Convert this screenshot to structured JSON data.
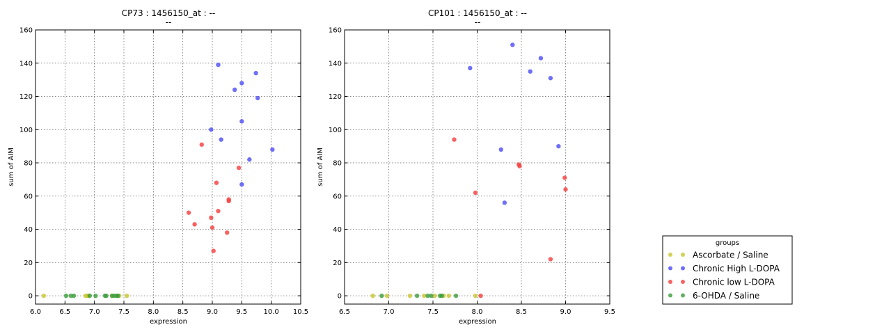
{
  "chart_data": [
    {
      "type": "scatter",
      "title": "CP73 : 1456150_at : --",
      "subtitle": "--",
      "xlabel": "expression",
      "ylabel": "sum of AIM",
      "xlim": [
        6.0,
        10.5
      ],
      "ylim": [
        -5,
        160
      ],
      "xticks": [
        6.0,
        6.5,
        7.0,
        7.5,
        8.0,
        8.5,
        9.0,
        9.5,
        10.0,
        10.5
      ],
      "yticks": [
        0,
        20,
        40,
        60,
        80,
        100,
        120,
        140,
        160
      ],
      "grid": true,
      "series": [
        {
          "name": "Ascorbate / Saline",
          "color": "#c9c631",
          "x": [
            6.14,
            6.85,
            6.88,
            6.9,
            7.3,
            7.42,
            7.55
          ],
          "y": [
            0,
            0,
            0,
            0,
            0,
            0,
            0
          ]
        },
        {
          "name": "Chronic High L-DOPA",
          "color": "#4b4bf5",
          "x": [
            9.1,
            9.38,
            9.5,
            9.74,
            9.77,
            8.98,
            9.5,
            9.15,
            10.02,
            9.63,
            9.5
          ],
          "y": [
            139,
            124,
            128,
            134,
            119,
            100,
            105,
            94,
            88,
            82,
            67
          ]
        },
        {
          "name": "Chronic low L-DOPA",
          "color": "#f53c3c",
          "x": [
            8.82,
            9.45,
            9.07,
            9.28,
            9.28,
            8.6,
            9.1,
            8.98,
            8.7,
            9.0,
            9.25,
            9.02
          ],
          "y": [
            91,
            77,
            68,
            58,
            57,
            50,
            51,
            47,
            43,
            41,
            38,
            27
          ]
        },
        {
          "name": "6-OHDA / Saline",
          "color": "#3c9c3c",
          "x": [
            6.52,
            6.6,
            6.65,
            6.92,
            7.02,
            7.18,
            7.2,
            7.3,
            7.34,
            7.38,
            7.4
          ],
          "y": [
            0,
            0,
            0,
            0,
            0,
            0,
            0,
            0,
            0,
            0,
            0
          ]
        }
      ]
    },
    {
      "type": "scatter",
      "title": "CP101 : 1456150_at : --",
      "subtitle": "--",
      "xlabel": "expression",
      "ylabel": "sum of AIM",
      "xlim": [
        6.5,
        9.5
      ],
      "ylim": [
        -5,
        160
      ],
      "xticks": [
        6.5,
        7.0,
        7.5,
        8.0,
        8.5,
        9.0,
        9.5
      ],
      "yticks": [
        0,
        20,
        40,
        60,
        80,
        100,
        120,
        140,
        160
      ],
      "grid": true,
      "series": [
        {
          "name": "Ascorbate / Saline",
          "color": "#c9c631",
          "x": [
            6.82,
            6.98,
            7.24,
            7.4,
            7.52,
            7.62,
            7.68,
            7.98
          ],
          "y": [
            0,
            0,
            0,
            0,
            0,
            0,
            0,
            0
          ]
        },
        {
          "name": "Chronic High L-DOPA",
          "color": "#4b4bf5",
          "x": [
            8.4,
            8.72,
            7.92,
            8.6,
            8.83,
            8.27,
            8.92,
            8.31
          ],
          "y": [
            151,
            143,
            137,
            135,
            131,
            88,
            90,
            56
          ]
        },
        {
          "name": "Chronic low L-DOPA",
          "color": "#f53c3c",
          "x": [
            7.74,
            8.47,
            8.48,
            8.99,
            9.0,
            7.98,
            8.83,
            8.04
          ],
          "y": [
            94,
            79,
            78,
            71,
            64,
            62,
            22,
            0
          ]
        },
        {
          "name": "6-OHDA / Saline",
          "color": "#3c9c3c",
          "x": [
            6.92,
            7.32,
            7.44,
            7.48,
            7.58,
            7.6,
            7.76
          ],
          "y": [
            0,
            0,
            0,
            0,
            0,
            0,
            0
          ]
        }
      ]
    }
  ],
  "legend": {
    "title": "groups",
    "placement": "lower-right, outside plots",
    "items": [
      {
        "label": "Ascorbate / Saline",
        "color": "#c9c631"
      },
      {
        "label": "Chronic High L-DOPA",
        "color": "#4b4bf5"
      },
      {
        "label": "Chronic low L-DOPA",
        "color": "#f53c3c"
      },
      {
        "label": "6-OHDA / Saline",
        "color": "#3c9c3c"
      }
    ]
  }
}
